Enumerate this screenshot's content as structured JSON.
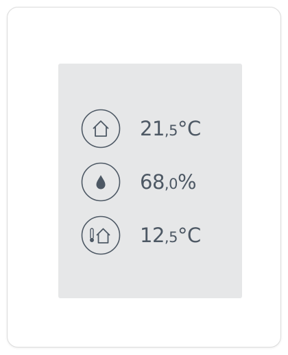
{
  "readings": [
    {
      "integer": "21",
      "decimal": ",5",
      "unit": "°C"
    },
    {
      "integer": "68",
      "decimal": ",0",
      "unit": "%"
    },
    {
      "integer": "12",
      "decimal": ",5",
      "unit": "°C"
    }
  ]
}
